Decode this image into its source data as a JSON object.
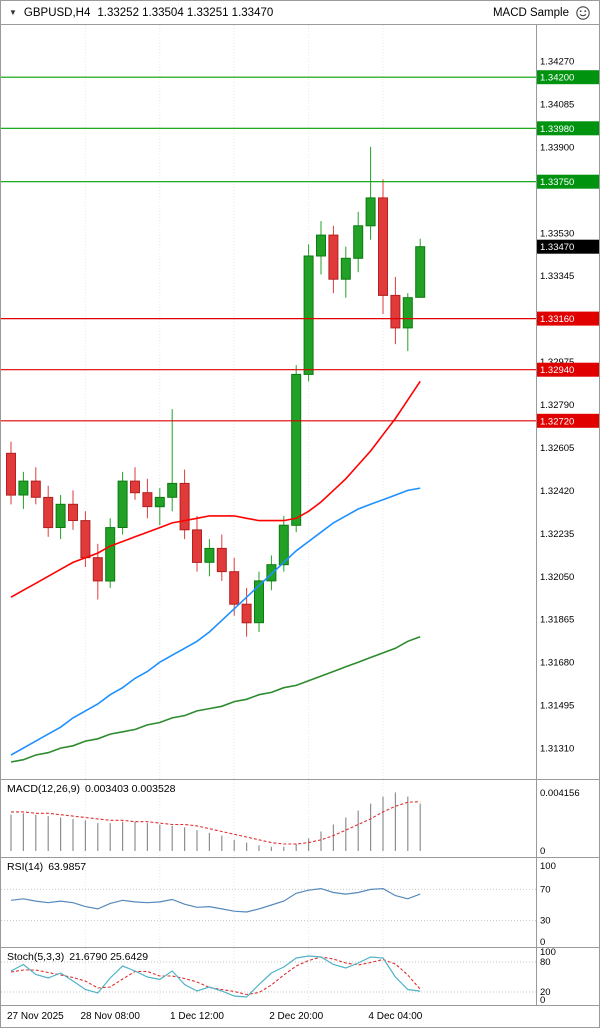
{
  "header": {
    "dropdown_icon": "▼",
    "symbol_title": "GBPUSD,H4",
    "ohlc": "1.33252 1.33504 1.33251 1.33470",
    "ea_name": "MACD Sample",
    "ea_icon": "smiley-face-icon"
  },
  "colors": {
    "bull": "#21a126",
    "bull_border": "#0c7a12",
    "bear": "#e03a3a",
    "bear_border": "#b22020",
    "ma_red": "#ff0000",
    "ma_blue": "#1e90ff",
    "ma_green": "#2e8b2e",
    "resistance": "#00a000",
    "resistance_tag": "#009310",
    "support": "#e00000",
    "support_tag": "#e00000",
    "current_price_tag": "#000000",
    "grid": "#e8e8e8",
    "axis_border": "#9a9a9a",
    "macd_hist": "#8f8f8f",
    "macd_signal": "#e03030",
    "rsi_line": "#5588bb",
    "level_dotted": "#c6c6c6",
    "stoch_k": "#4fb3c6",
    "stoch_d": "#e03030"
  },
  "chart_data": {
    "type": "candlestick",
    "symbol": "GBPUSD",
    "timeframe": "H4",
    "current_price": "1.33470",
    "ylim": [
      1.31177,
      1.34425
    ],
    "y_axis_labels": [
      "1.34270",
      "1.34085",
      "1.33900",
      "1.33530",
      "1.33345",
      "1.32975",
      "1.32790",
      "1.32605",
      "1.32420",
      "1.32235",
      "1.32050",
      "1.31865",
      "1.31680",
      "1.31495",
      "1.31310"
    ],
    "x_axis_labels": [
      {
        "label": "27 Nov 2025",
        "bar": 0
      },
      {
        "label": "28 Nov 08:00",
        "bar": 8
      },
      {
        "label": "1 Dec 12:00",
        "bar": 15
      },
      {
        "label": "2 Dec 20:00",
        "bar": 23
      },
      {
        "label": "4 Dec 04:00",
        "bar": 31
      }
    ],
    "grid_bars": [
      6,
      12,
      18,
      24,
      30
    ],
    "levels": {
      "resistance": [
        "1.34200",
        "1.33980",
        "1.33750"
      ],
      "support": [
        "1.33160",
        "1.32940",
        "1.32720"
      ]
    },
    "bars": [
      {
        "t": "27 Nov 00:00",
        "o": 1.3258,
        "h": 1.3263,
        "l": 1.3236,
        "c": 1.324
      },
      {
        "t": "27 Nov 04:00",
        "o": 1.324,
        "h": 1.325,
        "l": 1.3234,
        "c": 1.3246
      },
      {
        "t": "27 Nov 08:00",
        "o": 1.3246,
        "h": 1.3252,
        "l": 1.3236,
        "c": 1.3239
      },
      {
        "t": "27 Nov 12:00",
        "o": 1.3239,
        "h": 1.3244,
        "l": 1.3222,
        "c": 1.3226
      },
      {
        "t": "27 Nov 16:00",
        "o": 1.3226,
        "h": 1.324,
        "l": 1.3221,
        "c": 1.3236
      },
      {
        "t": "27 Nov 20:00",
        "o": 1.3236,
        "h": 1.3242,
        "l": 1.3225,
        "c": 1.3229
      },
      {
        "t": "28 Nov 00:00",
        "o": 1.3229,
        "h": 1.3233,
        "l": 1.3209,
        "c": 1.3213
      },
      {
        "t": "28 Nov 04:00",
        "o": 1.3213,
        "h": 1.3219,
        "l": 1.3195,
        "c": 1.3203
      },
      {
        "t": "28 Nov 08:00",
        "o": 1.3203,
        "h": 1.323,
        "l": 1.32,
        "c": 1.3226
      },
      {
        "t": "28 Nov 12:00",
        "o": 1.3226,
        "h": 1.325,
        "l": 1.3223,
        "c": 1.3246
      },
      {
        "t": "28 Nov 16:00",
        "o": 1.3246,
        "h": 1.3252,
        "l": 1.3238,
        "c": 1.3241
      },
      {
        "t": "28 Nov 20:00",
        "o": 1.3241,
        "h": 1.3247,
        "l": 1.323,
        "c": 1.3235
      },
      {
        "t": "1 Dec 00:00",
        "o": 1.3235,
        "h": 1.3243,
        "l": 1.3227,
        "c": 1.3239
      },
      {
        "t": "1 Dec 04:00",
        "o": 1.3239,
        "h": 1.3277,
        "l": 1.3233,
        "c": 1.3245
      },
      {
        "t": "1 Dec 08:00",
        "o": 1.3245,
        "h": 1.3251,
        "l": 1.3221,
        "c": 1.3225
      },
      {
        "t": "1 Dec 12:00",
        "o": 1.3225,
        "h": 1.3231,
        "l": 1.3207,
        "c": 1.3211
      },
      {
        "t": "1 Dec 16:00",
        "o": 1.3211,
        "h": 1.3221,
        "l": 1.3205,
        "c": 1.3217
      },
      {
        "t": "1 Dec 20:00",
        "o": 1.3217,
        "h": 1.3223,
        "l": 1.3203,
        "c": 1.3207
      },
      {
        "t": "2 Dec 00:00",
        "o": 1.3207,
        "h": 1.3213,
        "l": 1.3188,
        "c": 1.3193
      },
      {
        "t": "2 Dec 04:00",
        "o": 1.3193,
        "h": 1.32,
        "l": 1.3179,
        "c": 1.3185
      },
      {
        "t": "2 Dec 08:00",
        "o": 1.3185,
        "h": 1.3207,
        "l": 1.3181,
        "c": 1.3203
      },
      {
        "t": "2 Dec 12:00",
        "o": 1.3203,
        "h": 1.3214,
        "l": 1.3199,
        "c": 1.321
      },
      {
        "t": "2 Dec 16:00",
        "o": 1.321,
        "h": 1.3231,
        "l": 1.3207,
        "c": 1.3227
      },
      {
        "t": "2 Dec 20:00",
        "o": 1.3227,
        "h": 1.3296,
        "l": 1.3224,
        "c": 1.3292
      },
      {
        "t": "3 Dec 00:00",
        "o": 1.3292,
        "h": 1.3348,
        "l": 1.3289,
        "c": 1.3343
      },
      {
        "t": "3 Dec 04:00",
        "o": 1.3343,
        "h": 1.3358,
        "l": 1.3335,
        "c": 1.3352
      },
      {
        "t": "3 Dec 08:00",
        "o": 1.3352,
        "h": 1.3356,
        "l": 1.3327,
        "c": 1.3333
      },
      {
        "t": "3 Dec 12:00",
        "o": 1.3333,
        "h": 1.3347,
        "l": 1.3325,
        "c": 1.3342
      },
      {
        "t": "3 Dec 16:00",
        "o": 1.3342,
        "h": 1.3362,
        "l": 1.3336,
        "c": 1.3356
      },
      {
        "t": "3 Dec 20:00",
        "o": 1.3356,
        "h": 1.339,
        "l": 1.335,
        "c": 1.3368
      },
      {
        "t": "4 Dec 00:00",
        "o": 1.3368,
        "h": 1.3376,
        "l": 1.3318,
        "c": 1.3326
      },
      {
        "t": "4 Dec 04:00",
        "o": 1.3326,
        "h": 1.3334,
        "l": 1.3305,
        "c": 1.3312
      },
      {
        "t": "4 Dec 08:00",
        "o": 1.3312,
        "h": 1.3327,
        "l": 1.3302,
        "c": 1.3325
      },
      {
        "t": "4 Dec 12:00",
        "o": 1.33252,
        "h": 1.33504,
        "l": 1.33251,
        "c": 1.3347
      }
    ],
    "ma_red": [
      1.3196,
      1.3199,
      1.3202,
      1.3205,
      1.3208,
      1.3211,
      1.3213,
      1.3215,
      1.3218,
      1.322,
      1.3222,
      1.3224,
      1.3226,
      1.3228,
      1.3229,
      1.323,
      1.3231,
      1.3231,
      1.3231,
      1.323,
      1.3229,
      1.3229,
      1.3229,
      1.323,
      1.3233,
      1.3237,
      1.3242,
      1.3247,
      1.3253,
      1.3259,
      1.3266,
      1.3273,
      1.3281,
      1.3289
    ],
    "ma_blue": [
      1.3128,
      1.3131,
      1.3134,
      1.3137,
      1.314,
      1.3144,
      1.3147,
      1.315,
      1.3154,
      1.3157,
      1.3161,
      1.3164,
      1.3168,
      1.3171,
      1.3174,
      1.3177,
      1.3181,
      1.3186,
      1.3191,
      1.3196,
      1.3201,
      1.3206,
      1.3211,
      1.3216,
      1.322,
      1.3224,
      1.3228,
      1.3231,
      1.3234,
      1.3236,
      1.3238,
      1.324,
      1.3242,
      1.3243
    ],
    "ma_green": [
      1.3125,
      1.3126,
      1.3128,
      1.3129,
      1.3131,
      1.3132,
      1.3134,
      1.3135,
      1.3137,
      1.3138,
      1.3139,
      1.3141,
      1.3142,
      1.3144,
      1.3145,
      1.3147,
      1.3148,
      1.3149,
      1.3151,
      1.3152,
      1.3154,
      1.3155,
      1.3157,
      1.3158,
      1.316,
      1.3162,
      1.3164,
      1.3166,
      1.3168,
      1.317,
      1.3172,
      1.3174,
      1.3177,
      1.3179
    ],
    "macd": {
      "title": "MACD(12,26,9)",
      "values": "0.003403 0.003528",
      "axis": [
        "0.004156",
        "0"
      ],
      "hist": [
        0.0026,
        0.0027,
        0.0026,
        0.0025,
        0.0024,
        0.0023,
        0.0022,
        0.002,
        0.002,
        0.0021,
        0.0021,
        0.002,
        0.0019,
        0.0018,
        0.0017,
        0.0015,
        0.0013,
        0.0011,
        0.0008,
        0.0006,
        0.0004,
        0.0003,
        0.0003,
        0.0005,
        0.0009,
        0.0014,
        0.0019,
        0.0024,
        0.0029,
        0.0034,
        0.0039,
        0.0042,
        0.0039,
        0.0034
      ],
      "signal": [
        0.0028,
        0.0028,
        0.0027,
        0.0027,
        0.0026,
        0.0025,
        0.0024,
        0.0023,
        0.0022,
        0.0022,
        0.0021,
        0.0021,
        0.002,
        0.0019,
        0.0019,
        0.0018,
        0.0016,
        0.0014,
        0.0012,
        0.001,
        0.0008,
        0.0006,
        0.0005,
        0.0005,
        0.0006,
        0.0008,
        0.0011,
        0.0015,
        0.0019,
        0.0023,
        0.0028,
        0.0032,
        0.0035,
        0.00353
      ]
    },
    "rsi": {
      "title": "RSI(14)",
      "value": "63.9857",
      "axis": [
        "100",
        "70",
        "30",
        "0"
      ],
      "levels": [
        70,
        30
      ],
      "series": [
        56,
        58,
        55,
        53,
        55,
        53,
        48,
        45,
        52,
        56,
        54,
        53,
        54,
        57,
        51,
        47,
        48,
        45,
        42,
        41,
        45,
        50,
        55,
        65,
        69,
        71,
        66,
        64,
        66,
        70,
        71,
        62,
        58,
        64
      ]
    },
    "stoch": {
      "title": "Stoch(5,3,3)",
      "values": "21.6790 25.6429",
      "axis": [
        "100",
        "80",
        "20",
        "0"
      ],
      "levels": [
        80,
        20
      ],
      "k": [
        62,
        75,
        55,
        48,
        58,
        42,
        25,
        18,
        48,
        72,
        62,
        50,
        45,
        62,
        35,
        22,
        30,
        22,
        12,
        10,
        35,
        58,
        70,
        88,
        92,
        90,
        75,
        68,
        78,
        90,
        88,
        50,
        25,
        21.7
      ],
      "d": [
        60,
        64,
        64,
        59,
        54,
        49,
        42,
        28,
        30,
        46,
        61,
        61,
        52,
        52,
        47,
        40,
        29,
        25,
        21,
        15,
        19,
        34,
        54,
        72,
        83,
        90,
        86,
        78,
        74,
        79,
        85,
        76,
        54,
        25.6
      ]
    }
  }
}
